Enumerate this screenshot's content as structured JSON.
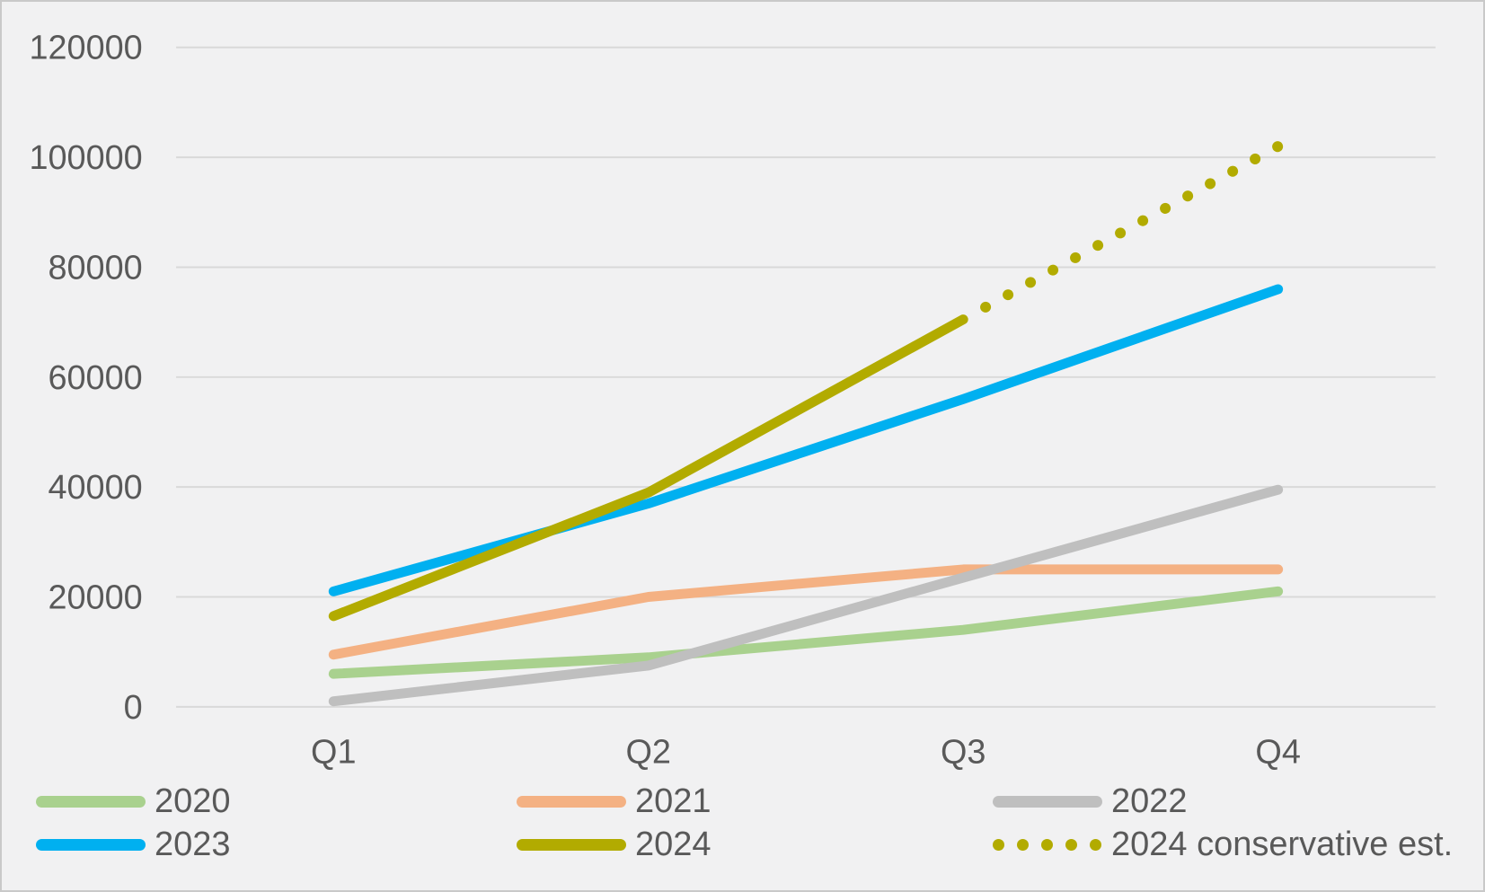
{
  "chart_data": {
    "type": "line",
    "title": "",
    "xlabel": "",
    "ylabel": "",
    "categories": [
      "Q1",
      "Q2",
      "Q3",
      "Q4"
    ],
    "series": [
      {
        "name": "2020",
        "color": "#a9d18e",
        "line_style": "solid",
        "values": [
          6000,
          9000,
          14000,
          21000
        ]
      },
      {
        "name": "2021",
        "color": "#f4b183",
        "line_style": "solid",
        "values": [
          9500,
          20000,
          25000,
          25000
        ]
      },
      {
        "name": "2022",
        "color": "#bfbfbf",
        "line_style": "solid",
        "values": [
          1000,
          7500,
          23500,
          39500
        ]
      },
      {
        "name": "2023",
        "color": "#00b0f0",
        "line_style": "solid",
        "values": [
          21000,
          37000,
          56000,
          76000
        ]
      },
      {
        "name": "2024",
        "color": "#b2ab00",
        "line_style": "solid",
        "values": [
          16500,
          39000,
          70500,
          null
        ]
      },
      {
        "name": "2024 conservative est.",
        "color": "#b2ab00",
        "line_style": "dotted",
        "values": [
          null,
          null,
          70500,
          102000
        ]
      }
    ],
    "ylim": [
      0,
      120000
    ],
    "ytick_labels": [
      "0",
      "20000",
      "40000",
      "60000",
      "80000",
      "100000",
      "120000"
    ],
    "grid": true,
    "legend_position": "bottom"
  },
  "colors": {
    "background": "#f1f1f2",
    "chart_border": "#c9c9c9",
    "gridline": "#d9d9d9",
    "axis_text": "#595959"
  }
}
